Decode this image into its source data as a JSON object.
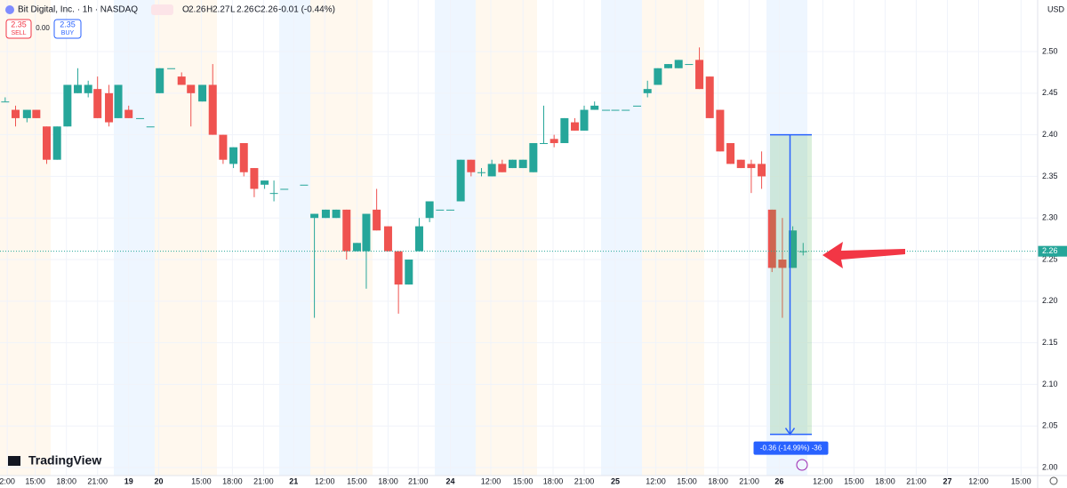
{
  "chart_data": {
    "type": "candlestick",
    "title": "Bit Digital, Inc. · 1h · NASDAQ",
    "legend": [
      {
        "key": "O",
        "value": "2.26"
      },
      {
        "key": "H",
        "value": "2.27"
      },
      {
        "key": "L",
        "value": "2.26"
      },
      {
        "key": "C",
        "value": "2.26"
      }
    ],
    "change": "-0.01 (-0.44%)",
    "trade": {
      "sell_price": "2.35",
      "sell_label": "SELL",
      "spread": "0.00",
      "buy_price": "2.35",
      "buy_label": "BUY"
    },
    "currency": "USD",
    "brand": "TradingView",
    "up_color": "#26a69a",
    "down_color": "#ef5350",
    "grid": true,
    "xlim": [
      0,
      100
    ],
    "ylim": [
      1.9904,
      2.562
    ],
    "yticks": [
      {
        "value": 2.0,
        "label": "2.00"
      },
      2.05,
      {
        "value": 2.1,
        "label": "2.10"
      },
      2.15,
      {
        "value": 2.2,
        "label": "2.20"
      },
      2.25,
      {
        "value": 2.3,
        "label": "2.30"
      },
      2.35,
      {
        "value": 2.4,
        "label": "2.40"
      },
      2.45,
      {
        "value": 2.5,
        "label": "2.50"
      }
    ],
    "xticks": [
      {
        "value": 0.7,
        "label": "2:00"
      },
      {
        "value": 3.4,
        "label": "15:00"
      },
      {
        "value": 6.4,
        "label": "18:00"
      },
      {
        "value": 9.4,
        "label": "21:00"
      },
      {
        "value": 12.4,
        "label": "19"
      },
      {
        "value": 15.3,
        "label": "20"
      },
      {
        "value": 19.4,
        "label": "15:00"
      },
      {
        "value": 22.4,
        "label": "18:00"
      },
      {
        "value": 25.4,
        "label": "21:00"
      },
      {
        "value": 28.3,
        "label": "21"
      },
      {
        "value": 31.3,
        "label": "12:00"
      },
      {
        "value": 34.4,
        "label": "15:00"
      },
      {
        "value": 37.4,
        "label": "18:00"
      },
      {
        "value": 40.3,
        "label": "21:00"
      },
      {
        "value": 43.4,
        "label": "24"
      },
      {
        "value": 47.3,
        "label": "12:00"
      },
      {
        "value": 50.4,
        "label": "15:00"
      },
      {
        "value": 53.3,
        "label": "18:00"
      },
      {
        "value": 56.3,
        "label": "21:00"
      },
      {
        "value": 59.3,
        "label": "25"
      },
      {
        "value": 63.2,
        "label": "12:00"
      },
      {
        "value": 66.2,
        "label": "15:00"
      },
      {
        "value": 69.2,
        "label": "18:00"
      },
      {
        "value": 72.2,
        "label": "21:00"
      },
      {
        "value": 75.1,
        "label": "26"
      },
      {
        "value": 79.3,
        "label": "12:00"
      },
      {
        "value": 82.3,
        "label": "15:00"
      },
      {
        "value": 85.3,
        "label": "18:00"
      },
      {
        "value": 88.3,
        "label": "21:00"
      },
      {
        "value": 91.3,
        "label": "27"
      },
      {
        "value": 94.3,
        "label": "12:00"
      },
      {
        "value": 98.4,
        "label": "15:00"
      }
    ],
    "x": [
      0.5,
      1.5,
      2.6,
      3.5,
      4.5,
      5.5,
      6.5,
      7.5,
      8.5,
      9.4,
      10.5,
      11.4,
      12.4,
      13.5,
      14.5,
      15.4,
      16.5,
      17.5,
      18.4,
      19.5,
      20.5,
      21.5,
      22.5,
      23.5,
      24.5,
      25.5,
      26.4,
      27.4,
      29.3,
      30.3,
      31.4,
      32.4,
      33.4,
      34.4,
      35.3,
      36.3,
      37.4,
      38.4,
      39.4,
      40.4,
      41.4,
      42.4,
      43.4,
      44.4,
      45.4,
      46.4,
      47.4,
      48.4,
      49.4,
      50.4,
      51.4,
      52.4,
      53.4,
      54.4,
      55.4,
      56.3,
      57.3,
      58.4,
      59.3,
      60.3,
      61.4,
      62.4,
      63.4,
      64.4,
      65.4,
      66.4,
      67.4,
      68.4,
      69.4,
      70.4,
      71.4,
      72.4,
      73.4,
      74.4,
      75.4,
      76.4,
      77.4
    ],
    "open": [
      2.44,
      2.43,
      2.42,
      2.43,
      2.41,
      2.37,
      2.41,
      2.45,
      2.45,
      2.455,
      2.45,
      2.42,
      2.43,
      2.42,
      2.41,
      2.45,
      2.48,
      2.47,
      2.46,
      2.44,
      2.46,
      2.4,
      2.365,
      2.39,
      2.36,
      2.34,
      2.33,
      2.335,
      2.34,
      2.3,
      2.3,
      2.3,
      2.31,
      2.26,
      2.26,
      2.31,
      2.29,
      2.26,
      2.22,
      2.26,
      2.3,
      2.31,
      2.31,
      2.32,
      2.37,
      2.355,
      2.35,
      2.365,
      2.36,
      2.36,
      2.355,
      2.39,
      2.395,
      2.39,
      2.415,
      2.405,
      2.43,
      2.43,
      2.43,
      2.43,
      2.435,
      2.45,
      2.46,
      2.48,
      2.48,
      2.485,
      2.49,
      2.47,
      2.43,
      2.39,
      2.37,
      2.365,
      2.365,
      2.31,
      2.25,
      2.24,
      2.26
    ],
    "high": [
      2.445,
      2.435,
      2.43,
      2.43,
      2.41,
      2.41,
      2.46,
      2.48,
      2.465,
      2.47,
      2.46,
      2.46,
      2.435,
      2.42,
      2.41,
      2.48,
      2.48,
      2.475,
      2.46,
      2.46,
      2.485,
      2.4,
      2.385,
      2.39,
      2.36,
      2.345,
      2.345,
      2.335,
      2.34,
      2.305,
      2.31,
      2.31,
      2.31,
      2.27,
      2.305,
      2.335,
      2.29,
      2.26,
      2.25,
      2.3,
      2.32,
      2.31,
      2.31,
      2.37,
      2.37,
      2.36,
      2.37,
      2.37,
      2.37,
      2.37,
      2.39,
      2.435,
      2.4,
      2.42,
      2.42,
      2.435,
      2.44,
      2.43,
      2.43,
      2.43,
      2.435,
      2.465,
      2.48,
      2.485,
      2.49,
      2.485,
      2.505,
      2.47,
      2.43,
      2.39,
      2.37,
      2.37,
      2.38,
      2.31,
      2.3,
      2.29,
      2.27
    ],
    "low": [
      2.44,
      2.41,
      2.415,
      2.42,
      2.365,
      2.37,
      2.41,
      2.45,
      2.445,
      2.42,
      2.41,
      2.42,
      2.42,
      2.42,
      2.41,
      2.45,
      2.48,
      2.46,
      2.41,
      2.44,
      2.4,
      2.365,
      2.36,
      2.35,
      2.325,
      2.335,
      2.32,
      2.335,
      2.34,
      2.18,
      2.3,
      2.3,
      2.25,
      2.26,
      2.215,
      2.285,
      2.26,
      2.185,
      2.22,
      2.26,
      2.295,
      2.31,
      2.31,
      2.32,
      2.35,
      2.35,
      2.35,
      2.355,
      2.36,
      2.36,
      2.355,
      2.39,
      2.385,
      2.39,
      2.405,
      2.405,
      2.43,
      2.43,
      2.43,
      2.43,
      2.435,
      2.445,
      2.46,
      2.48,
      2.48,
      2.485,
      2.455,
      2.42,
      2.38,
      2.365,
      2.36,
      2.33,
      2.335,
      2.235,
      2.18,
      2.24,
      2.255
    ],
    "close": [
      2.44,
      2.42,
      2.43,
      2.42,
      2.37,
      2.41,
      2.46,
      2.46,
      2.46,
      2.42,
      2.415,
      2.46,
      2.42,
      2.42,
      2.41,
      2.48,
      2.48,
      2.46,
      2.45,
      2.46,
      2.4,
      2.37,
      2.385,
      2.355,
      2.335,
      2.345,
      2.33,
      2.335,
      2.34,
      2.305,
      2.31,
      2.31,
      2.26,
      2.27,
      2.305,
      2.285,
      2.26,
      2.22,
      2.25,
      2.29,
      2.32,
      2.31,
      2.31,
      2.37,
      2.355,
      2.355,
      2.365,
      2.355,
      2.37,
      2.37,
      2.39,
      2.39,
      2.39,
      2.42,
      2.405,
      2.43,
      2.435,
      2.43,
      2.43,
      2.43,
      2.435,
      2.455,
      2.48,
      2.485,
      2.49,
      2.485,
      2.455,
      2.42,
      2.38,
      2.365,
      2.36,
      2.36,
      2.35,
      2.24,
      2.24,
      2.285,
      2.26
    ],
    "last_price": {
      "value": 2.26,
      "label": "2.26"
    },
    "measure": {
      "from": 2.4,
      "to": 2.04,
      "label": "-0.36 (-14.99%) -36"
    }
  }
}
